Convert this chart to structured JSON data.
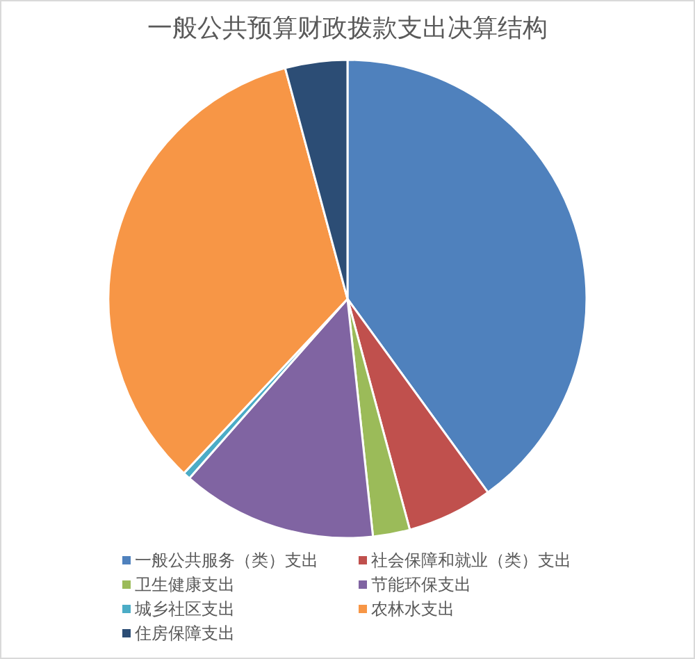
{
  "chart_data": {
    "type": "pie",
    "title": "一般公共预算财政拨款支出决算结构",
    "categories": [
      "一般公共服务（类）支出",
      "社会保障和就业（类）支出",
      "卫生健康支出",
      "节能环保支出",
      "城乡社区支出",
      "农林水支出",
      "住房保障支出"
    ],
    "values": [
      40.0,
      5.8,
      2.5,
      13.2,
      0.5,
      33.8,
      4.2
    ],
    "colors": [
      "#4f81bd",
      "#c0504d",
      "#9bbb59",
      "#8064a2",
      "#4bacc6",
      "#f79646",
      "#2c4d75"
    ],
    "legend": "bottom"
  }
}
